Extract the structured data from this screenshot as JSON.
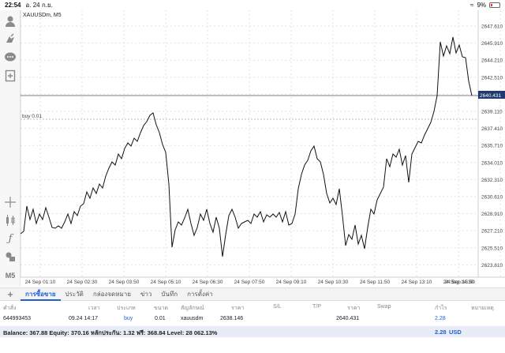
{
  "status_bar": {
    "time": "22:54",
    "date": "อ. 24 ก.ย.",
    "battery": "9%"
  },
  "chart": {
    "symbol": "XAUUSDm, M5",
    "order_line_label": "buy 0.01",
    "current_price": "2640.431",
    "price_labels": [
      "2647.610",
      "2645.910",
      "2644.210",
      "2642.510",
      "2640.810",
      "2639.110",
      "2637.410",
      "2635.710",
      "2634.010",
      "2632.310",
      "2630.610",
      "2628.910",
      "2627.210",
      "2625.510",
      "2623.810"
    ],
    "time_labels": [
      "24 Sep 01:10",
      "24 Sep 02:30",
      "24 Sep 03:50",
      "24 Sep 05:10",
      "24 Sep 06:30",
      "24 Sep 07:50",
      "24 Sep 09:10",
      "24 Sep 10:30",
      "24 Sep 11:50",
      "24 Sep 13:10",
      "24 Sep 14:30",
      "24 Sep 15:50"
    ],
    "colors": {
      "line": "#111111",
      "grid": "#e2e2e2",
      "price_tag_bg": "#1f3a6e",
      "order_line": "#bbbbbb"
    }
  },
  "toolbar": {
    "timeframe": "M5",
    "icons": [
      "user-icon",
      "notification-icon",
      "chat-icon",
      "new-order-icon",
      "crosshair-icon",
      "candles-icon",
      "indicators-icon",
      "objects-icon"
    ]
  },
  "tabs": {
    "add": "+",
    "items": [
      "การซื้อขาย",
      "ประวัติ",
      "กล่องจดหมาย",
      "ข่าว",
      "บันทึก",
      "การตั้งค่า"
    ],
    "active_index": 0
  },
  "table": {
    "headers": [
      "คำสั่ง",
      "เวลา",
      "ประเภท",
      "ขนาด",
      "สัญลักษณ์",
      "ราคา",
      "S/L",
      "T/P",
      "ราคา",
      "Swap",
      "กำไร",
      "หมายเหตุ"
    ],
    "row": [
      "644993453",
      "09.24 14:17",
      "buy",
      "0.01",
      "xauusdm",
      "2638.146",
      "",
      "",
      "2640.431",
      "",
      "2.28",
      ""
    ]
  },
  "balance_bar": {
    "text": "Balance: 367.88 Equity: 370.16 หลักประกัน: 1.32 ฟรี: 368.84 Level: 28 062.13%",
    "profit": "2.28",
    "currency": "USD"
  }
}
